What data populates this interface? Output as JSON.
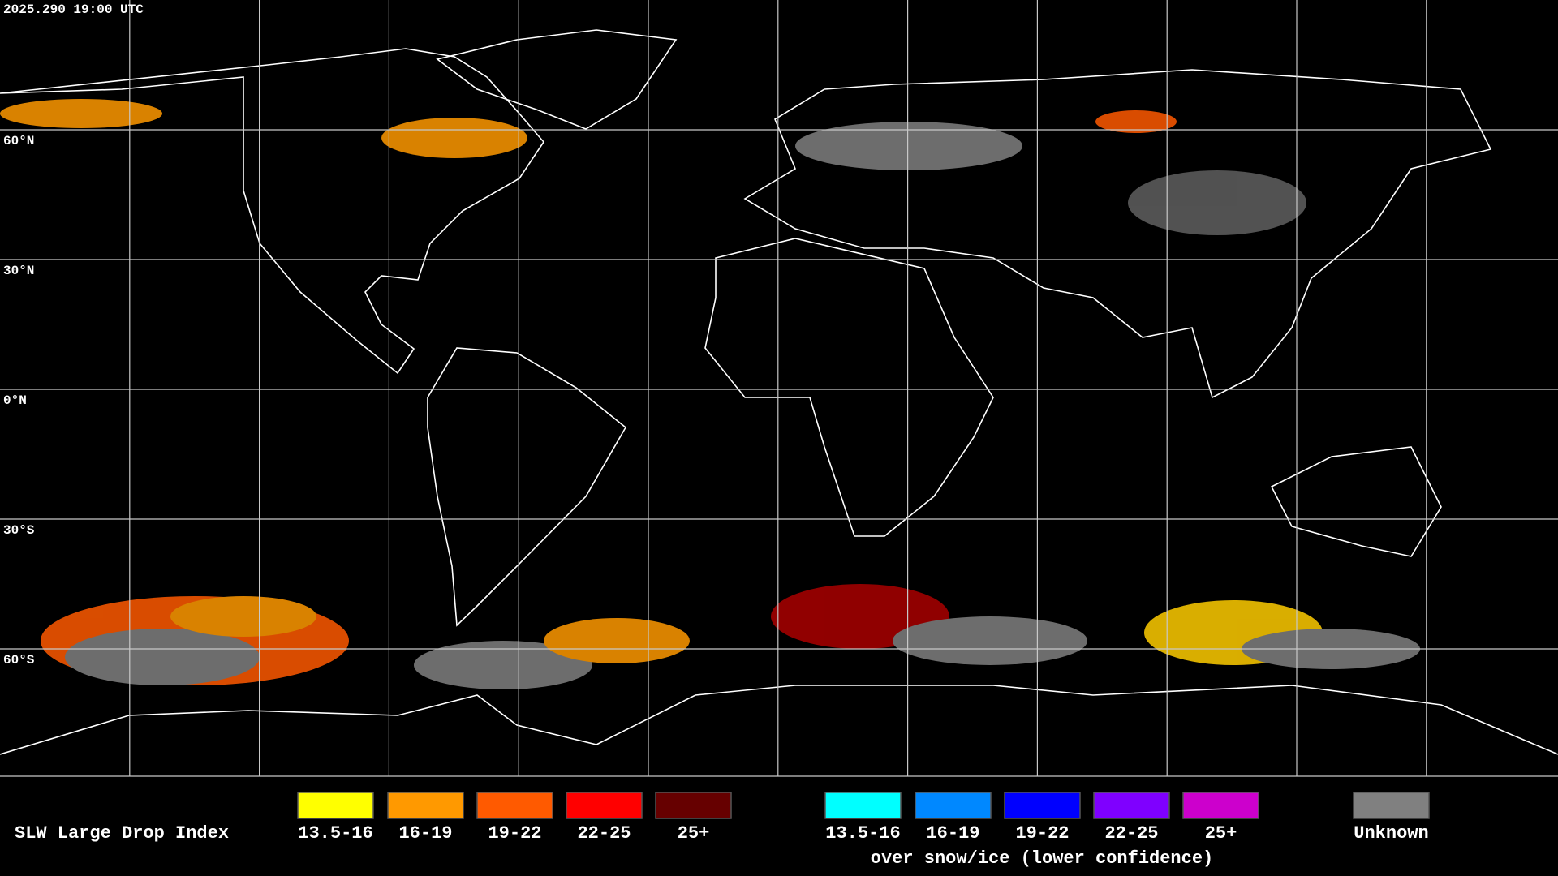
{
  "header": {
    "timestamp": "2025.290 19:00 UTC"
  },
  "map": {
    "latitude_labels": [
      "60°N",
      "30°N",
      "0°N",
      "30°S",
      "60°S"
    ]
  },
  "legend": {
    "title": "SLW Large Drop Index",
    "items": [
      {
        "label": "13.5-16",
        "color": "#ffff00"
      },
      {
        "label": "16-19",
        "color": "#ff9900"
      },
      {
        "label": "19-22",
        "color": "#ff5a00"
      },
      {
        "label": "22-25",
        "color": "#ff0000"
      },
      {
        "label": "25+",
        "color": "#660000"
      }
    ],
    "snow_items": [
      {
        "label": "13.5-16",
        "color": "#00ffff"
      },
      {
        "label": "16-19",
        "color": "#0088ff"
      },
      {
        "label": "19-22",
        "color": "#0000ff"
      },
      {
        "label": "22-25",
        "color": "#7f00ff"
      },
      {
        "label": "25+",
        "color": "#cc00cc"
      }
    ],
    "snow_caption": "over snow/ice (lower confidence)",
    "unknown": {
      "label": "Unknown",
      "color": "#808080"
    }
  }
}
